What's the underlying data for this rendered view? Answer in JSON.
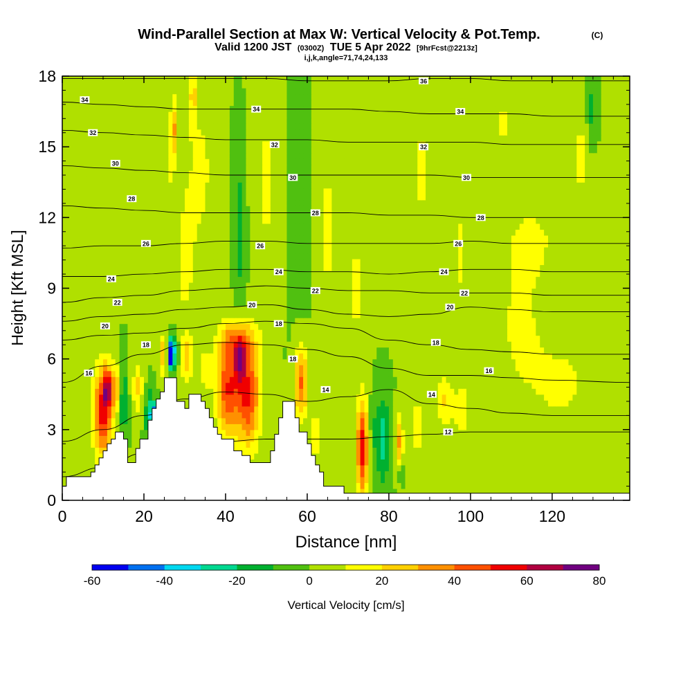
{
  "chart_data": {
    "type": "heatmap",
    "title": "Wind-Parallel Section at Max W: Vertical Velocity & Pot.Temp.",
    "title_mark": "(C)",
    "subtitle": {
      "prefix": "Valid 1200 JST",
      "utc": "(0300Z)",
      "date": "TUE 5 Apr 2022",
      "forecast": "[9hrFcst@2213z]"
    },
    "subtitle2": "i,j,k,angle=71,74,24,133",
    "xlabel": "Distance [nm]",
    "ylabel": "Height [Kft MSL]",
    "x_ticks": [
      "0",
      "20",
      "40",
      "60",
      "80",
      "100",
      "120"
    ],
    "y_ticks": [
      "0",
      "3",
      "6",
      "9",
      "12",
      "15",
      "18"
    ],
    "xlim": [
      0,
      139
    ],
    "ylim": [
      0,
      18
    ],
    "colorbar": {
      "label": "Vertical Velocity [cm/s]",
      "tick_labels": [
        "-60",
        "-40",
        "-20",
        "0",
        "20",
        "40",
        "60",
        "80"
      ],
      "bounds": [
        -60,
        -50,
        -40,
        -30,
        -20,
        -10,
        0,
        10,
        20,
        30,
        40,
        50,
        60,
        70,
        80
      ],
      "colors": [
        "#0000f0",
        "#0070f0",
        "#00d8f0",
        "#00d890",
        "#00b030",
        "#50c010",
        "#b0e000",
        "#ffff00",
        "#ffd000",
        "#ff9000",
        "#ff5000",
        "#f00000",
        "#b00040",
        "#700080"
      ]
    },
    "terrain_profile": [
      [
        0,
        0.6
      ],
      [
        1,
        0.6
      ],
      [
        1,
        1
      ],
      [
        3,
        1
      ],
      [
        5,
        1
      ],
      [
        7,
        1
      ],
      [
        7,
        1.2
      ],
      [
        8,
        1.2
      ],
      [
        8,
        1.5
      ],
      [
        9,
        1.5
      ],
      [
        9,
        1.8
      ],
      [
        10,
        1.8
      ],
      [
        10,
        2.1
      ],
      [
        11,
        2.1
      ],
      [
        11,
        2.4
      ],
      [
        12,
        2.4
      ],
      [
        12,
        2.6
      ],
      [
        13,
        2.6
      ],
      [
        13,
        2.9
      ],
      [
        15,
        2.9
      ],
      [
        15,
        2.6
      ],
      [
        16,
        2.6
      ],
      [
        16,
        1.6
      ],
      [
        18,
        1.6
      ],
      [
        18,
        2.2
      ],
      [
        19,
        2.2
      ],
      [
        19,
        2.6
      ],
      [
        21,
        2.6
      ],
      [
        21,
        3.4
      ],
      [
        22,
        3.4
      ],
      [
        22,
        3.9
      ],
      [
        23,
        3.9
      ],
      [
        23,
        4.3
      ],
      [
        24,
        4.3
      ],
      [
        24,
        4.6
      ],
      [
        25,
        4.6
      ],
      [
        25,
        5.2
      ],
      [
        28,
        5.2
      ],
      [
        28,
        4.2
      ],
      [
        30,
        4.2
      ],
      [
        30,
        3.9
      ],
      [
        31,
        3.9
      ],
      [
        31,
        4.5
      ],
      [
        34,
        4.5
      ],
      [
        34,
        4.2
      ],
      [
        35,
        4.2
      ],
      [
        35,
        3.9
      ],
      [
        36,
        3.9
      ],
      [
        36,
        3.5
      ],
      [
        37,
        3.5
      ],
      [
        37,
        3.1
      ],
      [
        38,
        3.1
      ],
      [
        38,
        2.8
      ],
      [
        39,
        2.8
      ],
      [
        39,
        2.6
      ],
      [
        42,
        2.6
      ],
      [
        42,
        2.1
      ],
      [
        44,
        2.1
      ],
      [
        44,
        1.9
      ],
      [
        46,
        1.9
      ],
      [
        46,
        1.6
      ],
      [
        51,
        1.6
      ],
      [
        51,
        2.1
      ],
      [
        52,
        2.1
      ],
      [
        52,
        2.8
      ],
      [
        53,
        2.8
      ],
      [
        53,
        3.5
      ],
      [
        54,
        3.5
      ],
      [
        54,
        4.2
      ],
      [
        57,
        4.2
      ],
      [
        57,
        3.5
      ],
      [
        58,
        3.5
      ],
      [
        58,
        2.9
      ],
      [
        60,
        2.9
      ],
      [
        60,
        2.4
      ],
      [
        61,
        2.4
      ],
      [
        61,
        1.9
      ],
      [
        62,
        1.9
      ],
      [
        62,
        1.5
      ],
      [
        63,
        1.5
      ],
      [
        63,
        1.2
      ],
      [
        64,
        1.2
      ],
      [
        64,
        0.6
      ],
      [
        69,
        0.6
      ],
      [
        69,
        0.3
      ],
      [
        139,
        0.3
      ]
    ],
    "theta_contours": [
      {
        "label": "12",
        "y": [
          1.0,
          1.4,
          2.0,
          2.4,
          2.5,
          2.6,
          2.6,
          2.6,
          2.7,
          2.8,
          2.9,
          2.9,
          2.9,
          2.9
        ]
      },
      {
        "label": "14",
        "y": [
          2.5,
          3.0,
          3.6,
          4.3,
          4.6,
          4.5,
          4.2,
          4.4,
          4.7,
          4.1,
          3.9,
          3.7,
          3.6,
          3.6
        ]
      },
      {
        "label": "16",
        "y": [
          5.0,
          5.7,
          6.2,
          6.6,
          6.7,
          6.6,
          6.4,
          6.1,
          5.6,
          5.3,
          5.3,
          5.2,
          5.1,
          5.0
        ]
      },
      {
        "label": "18",
        "y": [
          6.8,
          7.0,
          7.1,
          7.3,
          7.5,
          7.6,
          7.5,
          7.3,
          6.8,
          6.6,
          6.4,
          6.3,
          6.2,
          6.2
        ]
      },
      {
        "label": "20",
        "y": [
          7.6,
          7.8,
          7.9,
          8.1,
          8.2,
          8.3,
          8.1,
          7.9,
          7.8,
          7.9,
          8.2,
          8.1,
          8.0,
          8.0
        ]
      },
      {
        "label": "22",
        "y": [
          8.4,
          8.6,
          8.7,
          8.9,
          9.0,
          9.1,
          9.0,
          8.9,
          8.9,
          8.8,
          8.8,
          8.8,
          8.7,
          8.7
        ]
      },
      {
        "label": "24",
        "y": [
          9.5,
          9.5,
          9.6,
          9.7,
          9.8,
          9.8,
          9.7,
          9.7,
          9.6,
          9.7,
          9.8,
          9.8,
          9.7,
          9.7
        ]
      },
      {
        "label": "26",
        "y": [
          10.7,
          10.8,
          10.8,
          10.9,
          11.0,
          11.0,
          10.9,
          10.9,
          10.9,
          10.9,
          11.0,
          10.9,
          10.9,
          10.9
        ]
      },
      {
        "label": "28",
        "y": [
          12.5,
          12.4,
          12.3,
          12.2,
          12.2,
          12.2,
          12.2,
          12.2,
          12.1,
          12.1,
          12.0,
          12.0,
          12.0,
          12.0
        ]
      },
      {
        "label": "30",
        "y": [
          14.2,
          14.1,
          14.0,
          13.9,
          13.8,
          13.8,
          13.8,
          13.8,
          13.8,
          13.8,
          13.7,
          13.7,
          13.7,
          13.7
        ]
      },
      {
        "label": "32",
        "y": [
          15.7,
          15.6,
          15.5,
          15.4,
          15.3,
          15.3,
          15.3,
          15.2,
          15.2,
          15.2,
          15.2,
          15.1,
          15.1,
          15.1
        ]
      },
      {
        "label": "34",
        "y": [
          16.9,
          16.8,
          16.7,
          16.6,
          16.6,
          16.6,
          16.6,
          16.6,
          16.5,
          16.4,
          16.4,
          16.4,
          16.3,
          16.3
        ]
      },
      {
        "label": "36",
        "y": [
          17.9,
          17.9,
          17.9,
          17.9,
          17.9,
          17.9,
          17.8,
          17.8,
          17.8,
          17.9,
          17.9,
          17.8,
          17.8,
          17.8
        ]
      }
    ],
    "theta_contour_x": [
      0,
      10,
      20,
      30,
      40,
      50,
      60,
      70,
      80,
      90,
      100,
      110,
      120,
      139
    ],
    "contour_labels": [
      {
        "text": "34",
        "x": 5.5,
        "y": 17.0
      },
      {
        "text": "32",
        "x": 7.5,
        "y": 15.6
      },
      {
        "text": "30",
        "x": 13.0,
        "y": 14.3
      },
      {
        "text": "28",
        "x": 17.0,
        "y": 12.8
      },
      {
        "text": "26",
        "x": 20.5,
        "y": 10.9
      },
      {
        "text": "24",
        "x": 12.0,
        "y": 9.4
      },
      {
        "text": "22",
        "x": 13.5,
        "y": 8.4
      },
      {
        "text": "20",
        "x": 10.5,
        "y": 7.4
      },
      {
        "text": "18",
        "x": 20.5,
        "y": 6.6
      },
      {
        "text": "16",
        "x": 6.5,
        "y": 5.4
      },
      {
        "text": "34",
        "x": 47.5,
        "y": 16.6
      },
      {
        "text": "32",
        "x": 52.0,
        "y": 15.1
      },
      {
        "text": "30",
        "x": 56.5,
        "y": 13.7
      },
      {
        "text": "28",
        "x": 62.0,
        "y": 12.2
      },
      {
        "text": "26",
        "x": 48.5,
        "y": 10.8
      },
      {
        "text": "24",
        "x": 53.0,
        "y": 9.7
      },
      {
        "text": "22",
        "x": 62.0,
        "y": 8.9
      },
      {
        "text": "20",
        "x": 46.5,
        "y": 8.3
      },
      {
        "text": "18",
        "x": 53.0,
        "y": 7.5
      },
      {
        "text": "18",
        "x": 56.5,
        "y": 6.0
      },
      {
        "text": "14",
        "x": 64.5,
        "y": 4.7
      },
      {
        "text": "36",
        "x": 88.5,
        "y": 17.8
      },
      {
        "text": "34",
        "x": 97.5,
        "y": 16.5
      },
      {
        "text": "32",
        "x": 88.5,
        "y": 15.0
      },
      {
        "text": "30",
        "x": 99.0,
        "y": 13.7
      },
      {
        "text": "28",
        "x": 102.5,
        "y": 12.0
      },
      {
        "text": "26",
        "x": 97.0,
        "y": 10.9
      },
      {
        "text": "24",
        "x": 93.5,
        "y": 9.7
      },
      {
        "text": "22",
        "x": 98.5,
        "y": 8.8
      },
      {
        "text": "20",
        "x": 95.0,
        "y": 8.2
      },
      {
        "text": "18",
        "x": 91.5,
        "y": 6.7
      },
      {
        "text": "16",
        "x": 104.5,
        "y": 5.5
      },
      {
        "text": "14",
        "x": 90.5,
        "y": 4.5
      },
      {
        "text": "12",
        "x": 94.5,
        "y": 2.9
      }
    ],
    "velocity_field": {
      "background": 0,
      "features": [
        {
          "x": 10,
          "y": 3.8,
          "rx": 2.6,
          "ry": 2.1,
          "v": 55
        },
        {
          "x": 13,
          "y": 4.8,
          "rx": 1.6,
          "ry": 1.0,
          "v": 25
        },
        {
          "x": 15,
          "y": 4.3,
          "rx": 1.0,
          "ry": 1.6,
          "v": -25
        },
        {
          "x": 18.5,
          "y": 4.8,
          "rx": 1.4,
          "ry": 1.2,
          "v": 22
        },
        {
          "x": 21.5,
          "y": 3.6,
          "rx": 1.2,
          "ry": 1.1,
          "v": -30
        },
        {
          "x": 22.5,
          "y": 3.6,
          "rx": 0.6,
          "ry": 0.5,
          "v": -45
        },
        {
          "x": 24.5,
          "y": 6.2,
          "rx": 1.0,
          "ry": 0.9,
          "v": 30
        },
        {
          "x": 27.0,
          "y": 6.3,
          "rx": 1.3,
          "ry": 0.8,
          "v": -40
        },
        {
          "x": 26.5,
          "y": 6.2,
          "rx": 0.5,
          "ry": 0.5,
          "v": -55
        },
        {
          "x": 30.5,
          "y": 6.0,
          "rx": 1.5,
          "ry": 1.0,
          "v": 25
        },
        {
          "x": 35.0,
          "y": 5.5,
          "rx": 1.8,
          "ry": 1.2,
          "v": 15
        },
        {
          "x": 40.5,
          "y": 4.8,
          "rx": 3.0,
          "ry": 2.3,
          "v": 48
        },
        {
          "x": 45.5,
          "y": 4.5,
          "rx": 3.2,
          "ry": 2.4,
          "v": 52
        },
        {
          "x": 43.0,
          "y": 6.8,
          "rx": 5.0,
          "ry": 0.9,
          "v": 25
        },
        {
          "x": 58.5,
          "y": 5.0,
          "rx": 1.8,
          "ry": 1.6,
          "v": 42
        },
        {
          "x": 62.0,
          "y": 2.8,
          "rx": 1.5,
          "ry": 1.5,
          "v": 15
        },
        {
          "x": 73.5,
          "y": 2.2,
          "rx": 1.5,
          "ry": 2.2,
          "v": 58
        },
        {
          "x": 76.0,
          "y": 3.0,
          "rx": 1.2,
          "ry": 1.6,
          "v": -5
        },
        {
          "x": 78.5,
          "y": 2.6,
          "rx": 2.0,
          "ry": 2.0,
          "v": -25
        },
        {
          "x": 82.5,
          "y": 2.5,
          "rx": 1.0,
          "ry": 1.3,
          "v": 30
        },
        {
          "x": 83.0,
          "y": 1.2,
          "rx": 0.5,
          "ry": 0.5,
          "v": -30
        },
        {
          "x": 87.0,
          "y": 3.2,
          "rx": 3.0,
          "ry": 2.5,
          "v": 12
        },
        {
          "x": 93.5,
          "y": 4.2,
          "rx": 2.0,
          "ry": 1.2,
          "v": 20
        },
        {
          "x": 98.0,
          "y": 3.8,
          "rx": 3.5,
          "ry": 2.5,
          "v": 12
        },
        {
          "x": 122.0,
          "y": 5.0,
          "rx": 10.0,
          "ry": 2.5,
          "v": 12
        },
        {
          "x": 112.0,
          "y": 7.5,
          "rx": 6.0,
          "ry": 3.0,
          "v": 12
        },
        {
          "x": 115.0,
          "y": 11.0,
          "rx": 8.0,
          "ry": 2.0,
          "v": 12
        },
        {
          "x": 30.0,
          "y": 10.0,
          "rx": 3.0,
          "ry": 4.0,
          "v": 12
        },
        {
          "x": 34.0,
          "y": 14.0,
          "rx": 4.0,
          "ry": 4.0,
          "v": 12
        },
        {
          "x": 38.5,
          "y": 14.0,
          "rx": 1.5,
          "ry": 3.5,
          "v": 2
        },
        {
          "x": 43.5,
          "y": 11.5,
          "rx": 1.5,
          "ry": 3.5,
          "v": -15
        },
        {
          "x": 50.0,
          "y": 13.5,
          "rx": 3.5,
          "ry": 4.5,
          "v": 12
        },
        {
          "x": 58.0,
          "y": 12.5,
          "rx": 3.0,
          "ry": 4.0,
          "v": -5
        },
        {
          "x": 65.0,
          "y": 11.5,
          "rx": 3.0,
          "ry": 5.0,
          "v": 12
        },
        {
          "x": 72.0,
          "y": 9.0,
          "rx": 2.5,
          "ry": 3.5,
          "v": 12
        },
        {
          "x": 88.0,
          "y": 14.0,
          "rx": 2.5,
          "ry": 4.0,
          "v": 12
        },
        {
          "x": 97.5,
          "y": 10.5,
          "rx": 2.5,
          "ry": 3.5,
          "v": 12
        },
        {
          "x": 108.0,
          "y": 16.0,
          "rx": 2.0,
          "ry": 2.0,
          "v": 12
        },
        {
          "x": 127.0,
          "y": 14.5,
          "rx": 2.5,
          "ry": 3.0,
          "v": 12
        },
        {
          "x": 129.5,
          "y": 16.5,
          "rx": 1.2,
          "ry": 1.5,
          "v": -15
        },
        {
          "x": 26.5,
          "y": 15.0,
          "rx": 1.5,
          "ry": 3.0,
          "v": 12
        },
        {
          "x": 32.0,
          "y": 17.2,
          "rx": 1.0,
          "ry": 1.5,
          "v": 22
        },
        {
          "x": 27.5,
          "y": 15.8,
          "rx": 0.6,
          "ry": 1.2,
          "v": 25
        },
        {
          "x": 43.5,
          "y": 6.0,
          "rx": 1.5,
          "ry": 1.0,
          "v": 40
        },
        {
          "x": 11.0,
          "y": 4.8,
          "rx": 1.0,
          "ry": 0.8,
          "v": 40
        }
      ]
    }
  }
}
